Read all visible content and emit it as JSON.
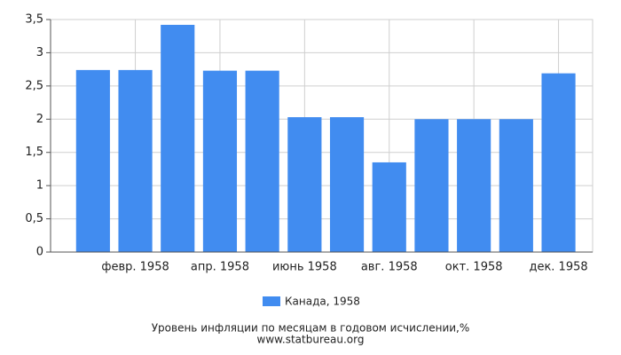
{
  "chart_data": {
    "type": "bar",
    "categories": [
      null,
      "февр. 1958",
      null,
      "апр. 1958",
      null,
      "июнь 1958",
      null,
      "авг. 1958",
      null,
      "окт. 1958",
      null,
      "дек. 1958"
    ],
    "series": [
      {
        "name": "Канада, 1958",
        "color": "#418cf0",
        "values": [
          2.74,
          2.74,
          3.42,
          2.73,
          2.73,
          2.03,
          2.03,
          1.35,
          2.0,
          2.0,
          2.0,
          2.69
        ]
      }
    ],
    "ylim": [
      0,
      3.5
    ],
    "yticks": [
      0,
      {
        "value": 0.5,
        "label": "0,5"
      },
      1,
      {
        "value": 1.5,
        "label": "1,5"
      },
      2,
      {
        "value": 2.5,
        "label": "2,5"
      },
      3,
      {
        "value": 3.5,
        "label": "3,5"
      }
    ],
    "grid": true,
    "xlabel": "Уровень инфляции по месяцам в годовом исчислении,%",
    "source": "www.statbureau.org"
  }
}
